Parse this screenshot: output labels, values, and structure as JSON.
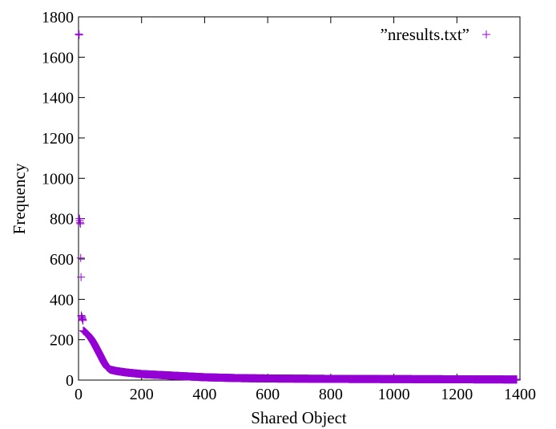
{
  "chart_data": {
    "type": "scatter",
    "title": "",
    "xlabel": "Shared Object",
    "ylabel": "Frequency",
    "xlim": [
      0,
      1400
    ],
    "ylim": [
      0,
      1800
    ],
    "x_ticks": [
      0,
      200,
      400,
      600,
      800,
      1000,
      1200,
      1400
    ],
    "y_ticks": [
      0,
      200,
      400,
      600,
      800,
      1000,
      1200,
      1400,
      1600,
      1800
    ],
    "legend_position": "top-right",
    "marker": "plus",
    "color": "#9400d3",
    "series": [
      {
        "name": "”nresults.txt”",
        "outliers": [
          {
            "x": 1,
            "y": 1715
          },
          {
            "x": 2,
            "y": 1710
          },
          {
            "x": 3,
            "y": 800
          },
          {
            "x": 4,
            "y": 790
          },
          {
            "x": 5,
            "y": 780
          },
          {
            "x": 6,
            "y": 775
          },
          {
            "x": 7,
            "y": 605
          },
          {
            "x": 8,
            "y": 510
          },
          {
            "x": 9,
            "y": 320
          },
          {
            "x": 10,
            "y": 315
          },
          {
            "x": 11,
            "y": 310
          },
          {
            "x": 12,
            "y": 305
          },
          {
            "x": 13,
            "y": 300
          },
          {
            "x": 14,
            "y": 295
          }
        ],
        "curve_anchors": [
          [
            15,
            245
          ],
          [
            20,
            240
          ],
          [
            30,
            225
          ],
          [
            40,
            205
          ],
          [
            50,
            180
          ],
          [
            60,
            150
          ],
          [
            70,
            120
          ],
          [
            80,
            90
          ],
          [
            90,
            65
          ],
          [
            100,
            52
          ],
          [
            120,
            45
          ],
          [
            150,
            38
          ],
          [
            200,
            30
          ],
          [
            250,
            26
          ],
          [
            300,
            22
          ],
          [
            350,
            18
          ],
          [
            400,
            14
          ],
          [
            500,
            10
          ],
          [
            600,
            8
          ],
          [
            800,
            6
          ],
          [
            1000,
            5
          ],
          [
            1200,
            4
          ],
          [
            1390,
            3
          ]
        ]
      }
    ]
  }
}
